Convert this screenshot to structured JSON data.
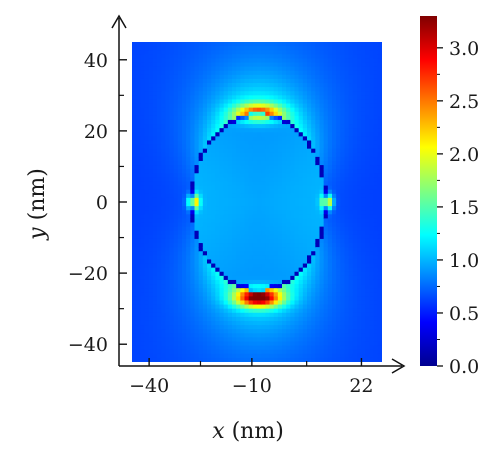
{
  "chart_data": {
    "type": "heatmap",
    "xlabel": {
      "var": "x",
      "unit": " (nm)"
    },
    "ylabel": {
      "var": "y",
      "unit": " (nm)"
    },
    "xlim": [
      -45,
      28
    ],
    "ylim": [
      -45,
      45
    ],
    "xticks": [
      -40,
      -10,
      22
    ],
    "xtick_labels": [
      "−40",
      "−10",
      "22"
    ],
    "yticks": [
      40,
      20,
      0,
      -20,
      -40
    ],
    "ytick_labels": [
      "40",
      "20",
      "0",
      "−20",
      "−40"
    ],
    "colorbar": {
      "range": [
        0.0,
        3.3
      ],
      "ticks": [
        3.0,
        2.5,
        2.0,
        1.5,
        1.0,
        0.5,
        0.0
      ],
      "tick_labels": [
        "3.0",
        "2.5",
        "2.0",
        "1.5",
        "1.0",
        "0.5",
        "0.0"
      ],
      "colormap": "jet"
    },
    "field": {
      "particle": {
        "shape": "ellipse",
        "center": [
          -8,
          0
        ],
        "semi_axis_x": 20,
        "semi_axis_y": 25
      },
      "interior_value": 0.95,
      "background_value": 0.6,
      "hotspots": [
        {
          "x": -8,
          "y": -27,
          "peak": 3.2,
          "label": "bottom"
        },
        {
          "x": -8,
          "y": 25,
          "peak": 2.3,
          "label": "top"
        },
        {
          "x": -27,
          "y": 0,
          "peak": 2.6,
          "label": "left"
        },
        {
          "x": 12,
          "y": 0,
          "peak": 2.6,
          "label": "right"
        }
      ]
    }
  }
}
